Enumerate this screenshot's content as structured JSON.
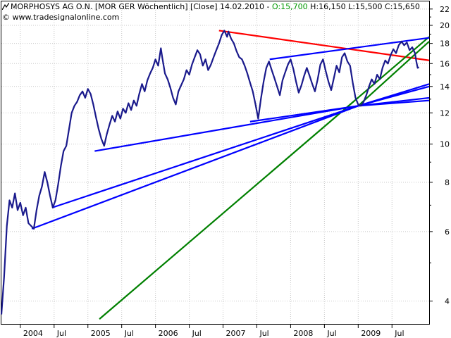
{
  "header": {
    "instrument": "MORPHOSYS AG O.N.",
    "exchange_interval": "[MOR GER  Wöchentlich]",
    "price_type": "[Close]",
    "date": "14.02.2010",
    "open": "O:15,700",
    "high": "H:16,150",
    "low": "L:15,500",
    "close": "C:15,650",
    "source": "© www.tradesignalonline.com",
    "chart_icon": "chart-line-icon"
  },
  "colors": {
    "price": "#1a1a8c",
    "blue_lines": "#0000ff",
    "red_line": "#ff0000",
    "green_line": "#008000",
    "open_text": "#009900"
  },
  "chart_data": {
    "type": "line",
    "scale": "log",
    "title": "MORPHOSYS AG O.N. [MOR GER  Wöchentlich] [Close] 14.02.2010",
    "xlabel": "",
    "ylabel": "",
    "ylim": [
      3.5,
      23
    ],
    "y_ticks": [
      4,
      6,
      8,
      10,
      12,
      14,
      16,
      18,
      20,
      22
    ],
    "x_ticks": [
      {
        "label": "2004",
        "t": 2004.0
      },
      {
        "label": "Jul",
        "t": 2004.5
      },
      {
        "label": "2005",
        "t": 2005.0
      },
      {
        "label": "Jul",
        "t": 2005.5
      },
      {
        "label": "2006",
        "t": 2006.0
      },
      {
        "label": "Jul",
        "t": 2006.5
      },
      {
        "label": "2007",
        "t": 2007.0
      },
      {
        "label": "Jul",
        "t": 2007.5
      },
      {
        "label": "2008",
        "t": 2008.0
      },
      {
        "label": "Jul",
        "t": 2008.5
      },
      {
        "label": "2009",
        "t": 2009.0
      },
      {
        "label": "Jul",
        "t": 2009.5
      }
    ],
    "series": [
      {
        "values": [
          [
            2003.72,
            3.7
          ],
          [
            2003.76,
            4.6
          ],
          [
            2003.8,
            6.2
          ],
          [
            2003.84,
            7.2
          ],
          [
            2003.88,
            6.9
          ],
          [
            2003.92,
            7.5
          ],
          [
            2003.96,
            6.8
          ],
          [
            2004.0,
            7.1
          ],
          [
            2004.04,
            6.6
          ],
          [
            2004.08,
            6.9
          ],
          [
            2004.12,
            6.3
          ],
          [
            2004.16,
            6.2
          ],
          [
            2004.2,
            6.1
          ],
          [
            2004.24,
            6.8
          ],
          [
            2004.28,
            7.4
          ],
          [
            2004.32,
            7.8
          ],
          [
            2004.36,
            8.5
          ],
          [
            2004.4,
            8.0
          ],
          [
            2004.44,
            7.4
          ],
          [
            2004.48,
            6.9
          ],
          [
            2004.52,
            7.2
          ],
          [
            2004.56,
            7.9
          ],
          [
            2004.6,
            8.8
          ],
          [
            2004.64,
            9.6
          ],
          [
            2004.68,
            9.9
          ],
          [
            2004.72,
            10.9
          ],
          [
            2004.76,
            12.0
          ],
          [
            2004.8,
            12.5
          ],
          [
            2004.84,
            12.8
          ],
          [
            2004.88,
            13.3
          ],
          [
            2004.92,
            13.6
          ],
          [
            2004.96,
            13.1
          ],
          [
            2005.0,
            13.8
          ],
          [
            2005.04,
            13.4
          ],
          [
            2005.08,
            12.6
          ],
          [
            2005.12,
            11.7
          ],
          [
            2005.16,
            10.9
          ],
          [
            2005.2,
            10.3
          ],
          [
            2005.24,
            9.9
          ],
          [
            2005.28,
            10.6
          ],
          [
            2005.32,
            11.2
          ],
          [
            2005.36,
            11.8
          ],
          [
            2005.4,
            11.4
          ],
          [
            2005.44,
            12.1
          ],
          [
            2005.48,
            11.6
          ],
          [
            2005.52,
            12.3
          ],
          [
            2005.56,
            12.0
          ],
          [
            2005.6,
            12.7
          ],
          [
            2005.64,
            12.2
          ],
          [
            2005.68,
            12.9
          ],
          [
            2005.72,
            12.5
          ],
          [
            2005.76,
            13.4
          ],
          [
            2005.8,
            14.2
          ],
          [
            2005.84,
            13.6
          ],
          [
            2005.88,
            14.5
          ],
          [
            2005.92,
            15.1
          ],
          [
            2005.96,
            15.6
          ],
          [
            2006.0,
            16.4
          ],
          [
            2006.04,
            15.8
          ],
          [
            2006.08,
            17.5
          ],
          [
            2006.1,
            16.6
          ],
          [
            2006.14,
            15.1
          ],
          [
            2006.18,
            14.6
          ],
          [
            2006.22,
            13.9
          ],
          [
            2006.26,
            13.1
          ],
          [
            2006.3,
            12.6
          ],
          [
            2006.34,
            13.6
          ],
          [
            2006.38,
            14.1
          ],
          [
            2006.42,
            14.6
          ],
          [
            2006.46,
            15.4
          ],
          [
            2006.5,
            15.0
          ],
          [
            2006.54,
            15.9
          ],
          [
            2006.58,
            16.6
          ],
          [
            2006.62,
            17.3
          ],
          [
            2006.66,
            16.9
          ],
          [
            2006.7,
            15.8
          ],
          [
            2006.74,
            16.4
          ],
          [
            2006.78,
            15.4
          ],
          [
            2006.82,
            15.9
          ],
          [
            2006.86,
            16.6
          ],
          [
            2006.9,
            17.3
          ],
          [
            2006.94,
            18.0
          ],
          [
            2006.98,
            18.9
          ],
          [
            2007.02,
            19.4
          ],
          [
            2007.06,
            18.7
          ],
          [
            2007.08,
            19.3
          ],
          [
            2007.12,
            18.5
          ],
          [
            2007.16,
            18.0
          ],
          [
            2007.2,
            17.2
          ],
          [
            2007.24,
            16.6
          ],
          [
            2007.28,
            16.4
          ],
          [
            2007.32,
            15.8
          ],
          [
            2007.36,
            15.1
          ],
          [
            2007.4,
            14.3
          ],
          [
            2007.44,
            13.6
          ],
          [
            2007.48,
            12.6
          ],
          [
            2007.52,
            11.6
          ],
          [
            2007.56,
            13.0
          ],
          [
            2007.6,
            14.4
          ],
          [
            2007.64,
            15.6
          ],
          [
            2007.68,
            16.2
          ],
          [
            2007.72,
            15.4
          ],
          [
            2007.76,
            14.7
          ],
          [
            2007.8,
            14.0
          ],
          [
            2007.84,
            13.3
          ],
          [
            2007.88,
            14.5
          ],
          [
            2007.92,
            15.2
          ],
          [
            2007.96,
            15.9
          ],
          [
            2008.0,
            16.4
          ],
          [
            2008.04,
            15.5
          ],
          [
            2008.08,
            14.4
          ],
          [
            2008.12,
            13.5
          ],
          [
            2008.16,
            14.1
          ],
          [
            2008.2,
            14.9
          ],
          [
            2008.24,
            15.6
          ],
          [
            2008.28,
            14.9
          ],
          [
            2008.32,
            14.2
          ],
          [
            2008.36,
            13.6
          ],
          [
            2008.4,
            14.6
          ],
          [
            2008.44,
            15.9
          ],
          [
            2008.48,
            16.4
          ],
          [
            2008.52,
            15.3
          ],
          [
            2008.56,
            14.4
          ],
          [
            2008.6,
            13.7
          ],
          [
            2008.64,
            14.7
          ],
          [
            2008.68,
            15.8
          ],
          [
            2008.72,
            15.2
          ],
          [
            2008.76,
            16.6
          ],
          [
            2008.8,
            17.0
          ],
          [
            2008.84,
            16.2
          ],
          [
            2008.88,
            15.8
          ],
          [
            2008.92,
            14.3
          ],
          [
            2008.96,
            13.1
          ],
          [
            2009.0,
            12.6
          ],
          [
            2009.04,
            12.5
          ],
          [
            2009.08,
            12.8
          ],
          [
            2009.12,
            13.3
          ],
          [
            2009.16,
            14.0
          ],
          [
            2009.2,
            14.6
          ],
          [
            2009.24,
            14.2
          ],
          [
            2009.28,
            15.0
          ],
          [
            2009.32,
            14.6
          ],
          [
            2009.36,
            15.6
          ],
          [
            2009.4,
            16.3
          ],
          [
            2009.44,
            16.0
          ],
          [
            2009.48,
            16.8
          ],
          [
            2009.52,
            17.4
          ],
          [
            2009.56,
            17.0
          ],
          [
            2009.6,
            17.8
          ],
          [
            2009.64,
            18.2
          ],
          [
            2009.68,
            17.8
          ],
          [
            2009.72,
            18.1
          ],
          [
            2009.76,
            17.3
          ],
          [
            2009.8,
            17.6
          ],
          [
            2009.84,
            17.0
          ],
          [
            2009.86,
            16.2
          ],
          [
            2009.88,
            15.6
          ],
          [
            2009.9,
            15.65
          ]
        ]
      }
    ],
    "trendlines": [
      {
        "color": "red",
        "from": [
          2006.94,
          19.4
        ],
        "to": [
          2010.05,
          16.3
        ]
      },
      {
        "color": "green",
        "from": [
          2005.17,
          3.6
        ],
        "to": [
          2010.05,
          18.7
        ]
      },
      {
        "color": "green",
        "from": [
          2009.0,
          12.5
        ],
        "to": [
          2010.05,
          18.2
        ]
      },
      {
        "color": "blue",
        "from": [
          2007.69,
          16.4
        ],
        "to": [
          2010.05,
          18.6
        ]
      },
      {
        "color": "blue",
        "from": [
          2007.4,
          11.4
        ],
        "to": [
          2009.0,
          12.5
        ]
      },
      {
        "color": "blue",
        "from": [
          2005.1,
          9.6
        ],
        "to": [
          2009.0,
          12.5
        ]
      },
      {
        "color": "blue",
        "from": [
          2004.47,
          6.9
        ],
        "to": [
          2009.0,
          12.5
        ]
      },
      {
        "color": "blue",
        "from": [
          2004.17,
          6.1
        ],
        "to": [
          2009.0,
          12.5
        ]
      },
      {
        "color": "blue",
        "from": [
          2009.0,
          12.5
        ],
        "to": [
          2010.05,
          14.2
        ]
      },
      {
        "color": "blue",
        "from": [
          2009.0,
          12.5
        ],
        "to": [
          2010.05,
          14.0
        ]
      },
      {
        "color": "blue",
        "from": [
          2009.0,
          12.5
        ],
        "to": [
          2010.05,
          13.1
        ]
      },
      {
        "color": "blue",
        "from": [
          2009.0,
          12.5
        ],
        "to": [
          2010.05,
          12.9
        ]
      }
    ]
  }
}
